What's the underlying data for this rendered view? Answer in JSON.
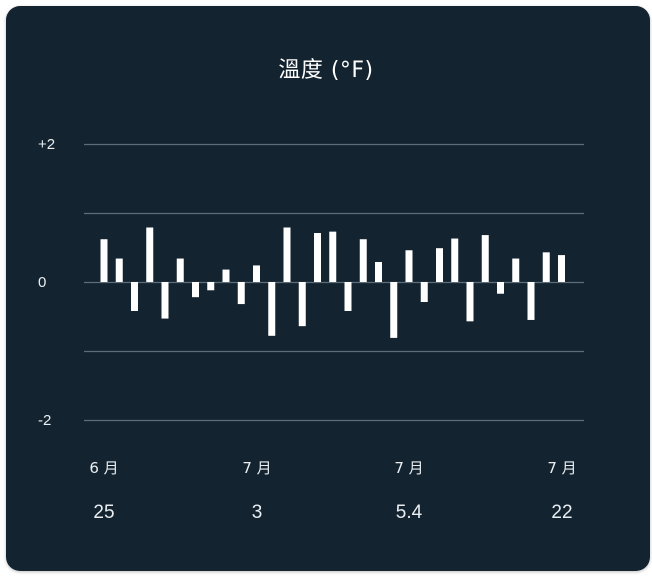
{
  "chart_data": {
    "type": "bar",
    "title": "溫度 (°F)",
    "ylim": [
      -2,
      2
    ],
    "y_ticks": [
      {
        "value": 2,
        "label": "+2"
      },
      {
        "value": 0,
        "label": "0"
      },
      {
        "value": -2,
        "label": "-2"
      }
    ],
    "grid_values": [
      2,
      1,
      0,
      -1,
      -2
    ],
    "x_tick_labels": [
      {
        "month": "6 月",
        "day": "25"
      },
      {
        "month": "7 月",
        "day": "3"
      },
      {
        "month": "7 月",
        "day": "5.4"
      },
      {
        "month": "7 月",
        "day": "22"
      }
    ],
    "values": [
      0.62,
      0.34,
      -0.42,
      0.79,
      -0.53,
      0.34,
      -0.22,
      -0.12,
      0.18,
      -0.32,
      0.24,
      -0.78,
      0.79,
      -0.64,
      0.71,
      0.73,
      -0.42,
      0.62,
      0.29,
      -0.81,
      0.46,
      -0.29,
      0.49,
      0.63,
      -0.57,
      0.68,
      -0.17,
      0.34,
      -0.55,
      0.43,
      0.39
    ],
    "grid": true,
    "colors": {
      "bar": "#ffffff",
      "grid": "#5d6d78",
      "background": "#13232f"
    }
  }
}
